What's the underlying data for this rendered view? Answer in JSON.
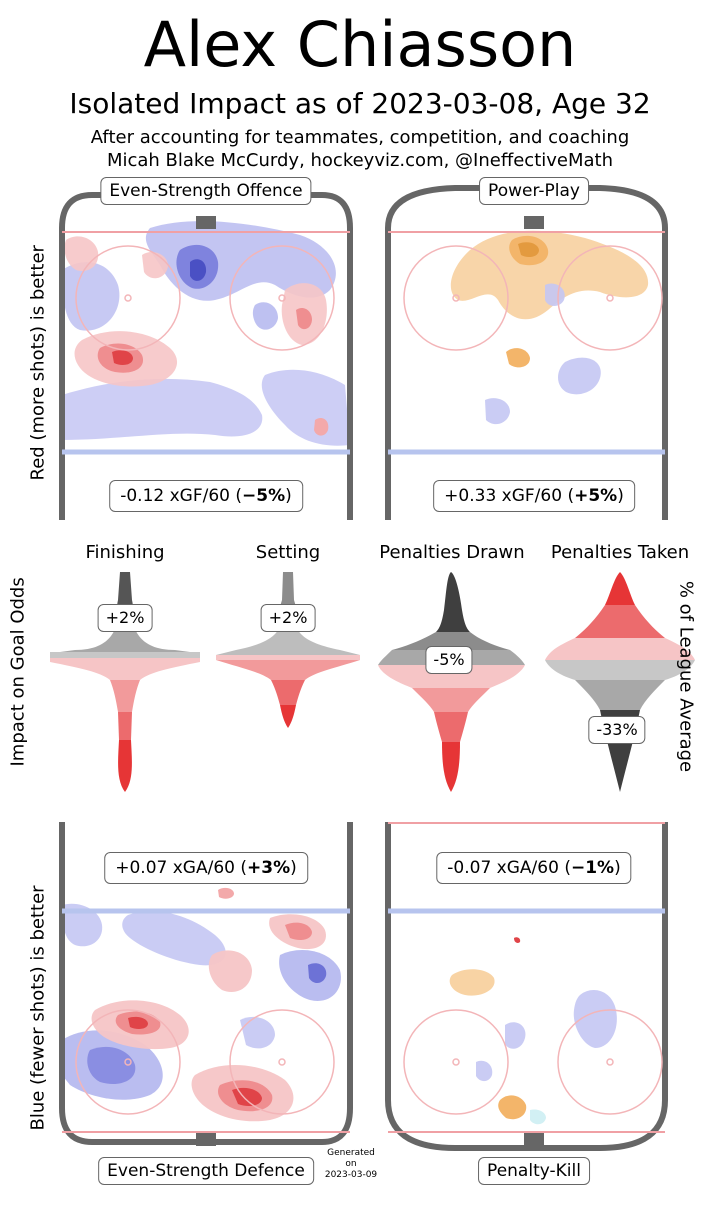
{
  "header": {
    "player_name": "Alex Chiasson",
    "subtitle": "Isolated Impact as of 2023-03-08, Age 32",
    "credit_line1": "After accounting for teammates, competition, and coaching",
    "credit_line2": "Micah Blake McCurdy, hockeyviz.com, @IneffectiveMath"
  },
  "axis_labels": {
    "top_left": "Red (more shots) is better",
    "bottom_left": "Blue (fewer shots) is better",
    "middle_left": "Impact on Goal Odds",
    "middle_right": "% of League Average"
  },
  "footer": {
    "generated_line1": "Generated",
    "generated_line2": "on",
    "generated_date": "2023-03-09"
  },
  "colors": {
    "red": "#e8494a",
    "blue": "#6d72d6",
    "orange": "#f3b56a",
    "grey": "#8c8c8c",
    "rink": "#666666"
  },
  "chart_data": [
    {
      "type": "heatmap",
      "title": "Even-Strength Offence",
      "stat_prefix": "-0.12 xGF/60 (",
      "stat_pct": "−5%",
      "stat_suffix": ")",
      "xgf_per_60": -0.12,
      "pct_change": -5
    },
    {
      "type": "heatmap",
      "title": "Power-Play",
      "stat_prefix": "+0.33 xGF/60 (",
      "stat_pct": "+5%",
      "stat_suffix": ")",
      "xgf_per_60": 0.33,
      "pct_change": 5
    },
    {
      "type": "heatmap",
      "title": "Even-Strength Defence",
      "stat_prefix": "+0.07 xGA/60 (",
      "stat_pct": "+3%",
      "stat_suffix": ")",
      "xga_per_60": 0.07,
      "pct_change": 3
    },
    {
      "type": "heatmap",
      "title": "Penalty-Kill",
      "stat_prefix": "-0.07 xGA/60 (",
      "stat_pct": "−1%",
      "stat_suffix": ")",
      "xga_per_60": -0.07,
      "pct_change": -1
    },
    {
      "type": "violin",
      "ylabel": "Impact on Goal Odds",
      "ylabel_right": "% of League Average",
      "violins": [
        {
          "name": "Finishing",
          "label": "+2%",
          "value": 2
        },
        {
          "name": "Setting",
          "label": "+2%",
          "value": 2
        },
        {
          "name": "Penalties Drawn",
          "label": "-5%",
          "value": -5
        },
        {
          "name": "Penalties Taken",
          "label": "-33%",
          "value": -33
        }
      ]
    }
  ]
}
